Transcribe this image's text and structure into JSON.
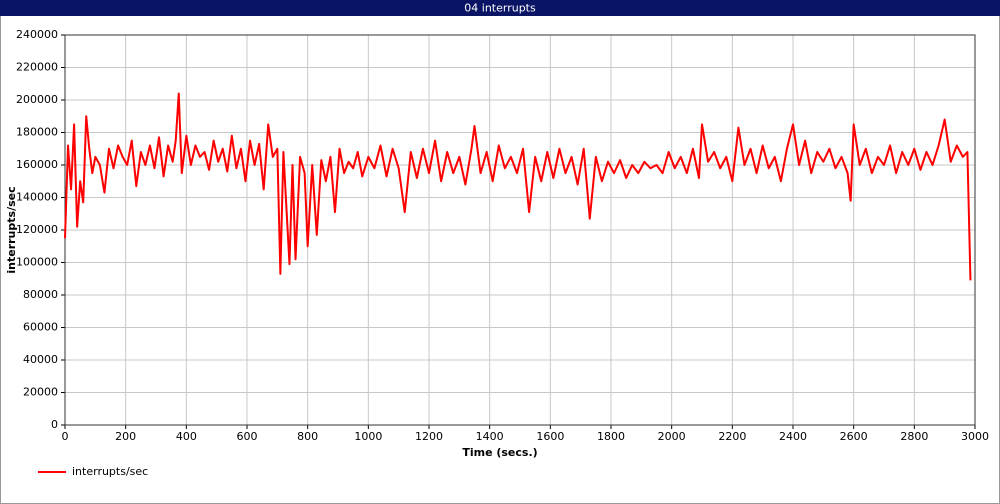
{
  "chart_data": {
    "type": "line",
    "title": "04 interrupts",
    "x_label": "Time (secs.)",
    "y_label": "interrupts/sec",
    "x": [
      0,
      10,
      20,
      30,
      40,
      50,
      60,
      70,
      80,
      90,
      100,
      115,
      130,
      145,
      160,
      175,
      190,
      205,
      220,
      235,
      250,
      265,
      280,
      295,
      310,
      325,
      340,
      355,
      365,
      375,
      385,
      400,
      415,
      430,
      445,
      460,
      475,
      490,
      505,
      520,
      535,
      550,
      565,
      580,
      595,
      610,
      625,
      640,
      655,
      670,
      685,
      700,
      710,
      720,
      740,
      750,
      760,
      775,
      790,
      800,
      815,
      830,
      845,
      860,
      875,
      890,
      905,
      920,
      935,
      950,
      965,
      980,
      1000,
      1020,
      1040,
      1060,
      1080,
      1100,
      1120,
      1140,
      1160,
      1180,
      1200,
      1220,
      1240,
      1260,
      1280,
      1300,
      1320,
      1340,
      1350,
      1370,
      1390,
      1410,
      1430,
      1450,
      1470,
      1490,
      1510,
      1530,
      1550,
      1570,
      1590,
      1610,
      1630,
      1650,
      1670,
      1690,
      1710,
      1730,
      1750,
      1770,
      1790,
      1810,
      1830,
      1850,
      1870,
      1890,
      1910,
      1930,
      1950,
      1970,
      1990,
      2010,
      2030,
      2050,
      2070,
      2090,
      2100,
      2120,
      2140,
      2160,
      2180,
      2200,
      2220,
      2240,
      2260,
      2280,
      2300,
      2320,
      2340,
      2360,
      2380,
      2400,
      2420,
      2440,
      2460,
      2480,
      2500,
      2520,
      2540,
      2560,
      2580,
      2590,
      2600,
      2620,
      2640,
      2660,
      2680,
      2700,
      2720,
      2740,
      2760,
      2780,
      2800,
      2820,
      2840,
      2860,
      2880,
      2900,
      2920,
      2940,
      2960,
      2975,
      2985
    ],
    "series": [
      {
        "name": "interrupts/sec",
        "color": "#ff0000",
        "values": [
          115000,
          172000,
          145000,
          185000,
          122000,
          150000,
          137000,
          190000,
          170000,
          155000,
          165000,
          160000,
          143000,
          170000,
          158000,
          172000,
          165000,
          160000,
          175000,
          147000,
          168000,
          160000,
          172000,
          158000,
          177000,
          153000,
          172000,
          162000,
          175000,
          204000,
          155000,
          178000,
          160000,
          172000,
          165000,
          168000,
          157000,
          175000,
          162000,
          170000,
          156000,
          178000,
          158000,
          170000,
          150000,
          175000,
          160000,
          173000,
          145000,
          185000,
          165000,
          170000,
          93000,
          168000,
          99000,
          160000,
          102000,
          165000,
          155000,
          110000,
          160000,
          117000,
          163000,
          150000,
          165000,
          131000,
          170000,
          155000,
          162000,
          158000,
          168000,
          153000,
          165000,
          158000,
          172000,
          153000,
          170000,
          158000,
          131000,
          168000,
          152000,
          170000,
          155000,
          175000,
          150000,
          168000,
          155000,
          165000,
          148000,
          170000,
          184000,
          155000,
          168000,
          150000,
          172000,
          158000,
          165000,
          155000,
          170000,
          131000,
          165000,
          150000,
          168000,
          152000,
          170000,
          155000,
          165000,
          148000,
          170000,
          127000,
          165000,
          150000,
          162000,
          155000,
          163000,
          152000,
          160000,
          155000,
          162000,
          158000,
          160000,
          155000,
          168000,
          158000,
          165000,
          155000,
          170000,
          152000,
          185000,
          162000,
          168000,
          158000,
          165000,
          150000,
          183000,
          160000,
          170000,
          155000,
          172000,
          158000,
          165000,
          150000,
          170000,
          185000,
          160000,
          175000,
          155000,
          168000,
          162000,
          170000,
          158000,
          165000,
          155000,
          138000,
          185000,
          160000,
          170000,
          155000,
          165000,
          160000,
          172000,
          155000,
          168000,
          160000,
          170000,
          157000,
          168000,
          160000,
          172000,
          188000,
          162000,
          172000,
          165000,
          168000,
          89000
        ]
      }
    ],
    "xlim": [
      0,
      3000
    ],
    "ylim": [
      0,
      240000
    ],
    "xticks": [
      0,
      200,
      400,
      600,
      800,
      1000,
      1200,
      1400,
      1600,
      1800,
      2000,
      2200,
      2400,
      2600,
      2800,
      3000
    ],
    "yticks": [
      0,
      20000,
      40000,
      60000,
      80000,
      100000,
      120000,
      140000,
      160000,
      180000,
      200000,
      220000,
      240000
    ],
    "grid": true
  }
}
